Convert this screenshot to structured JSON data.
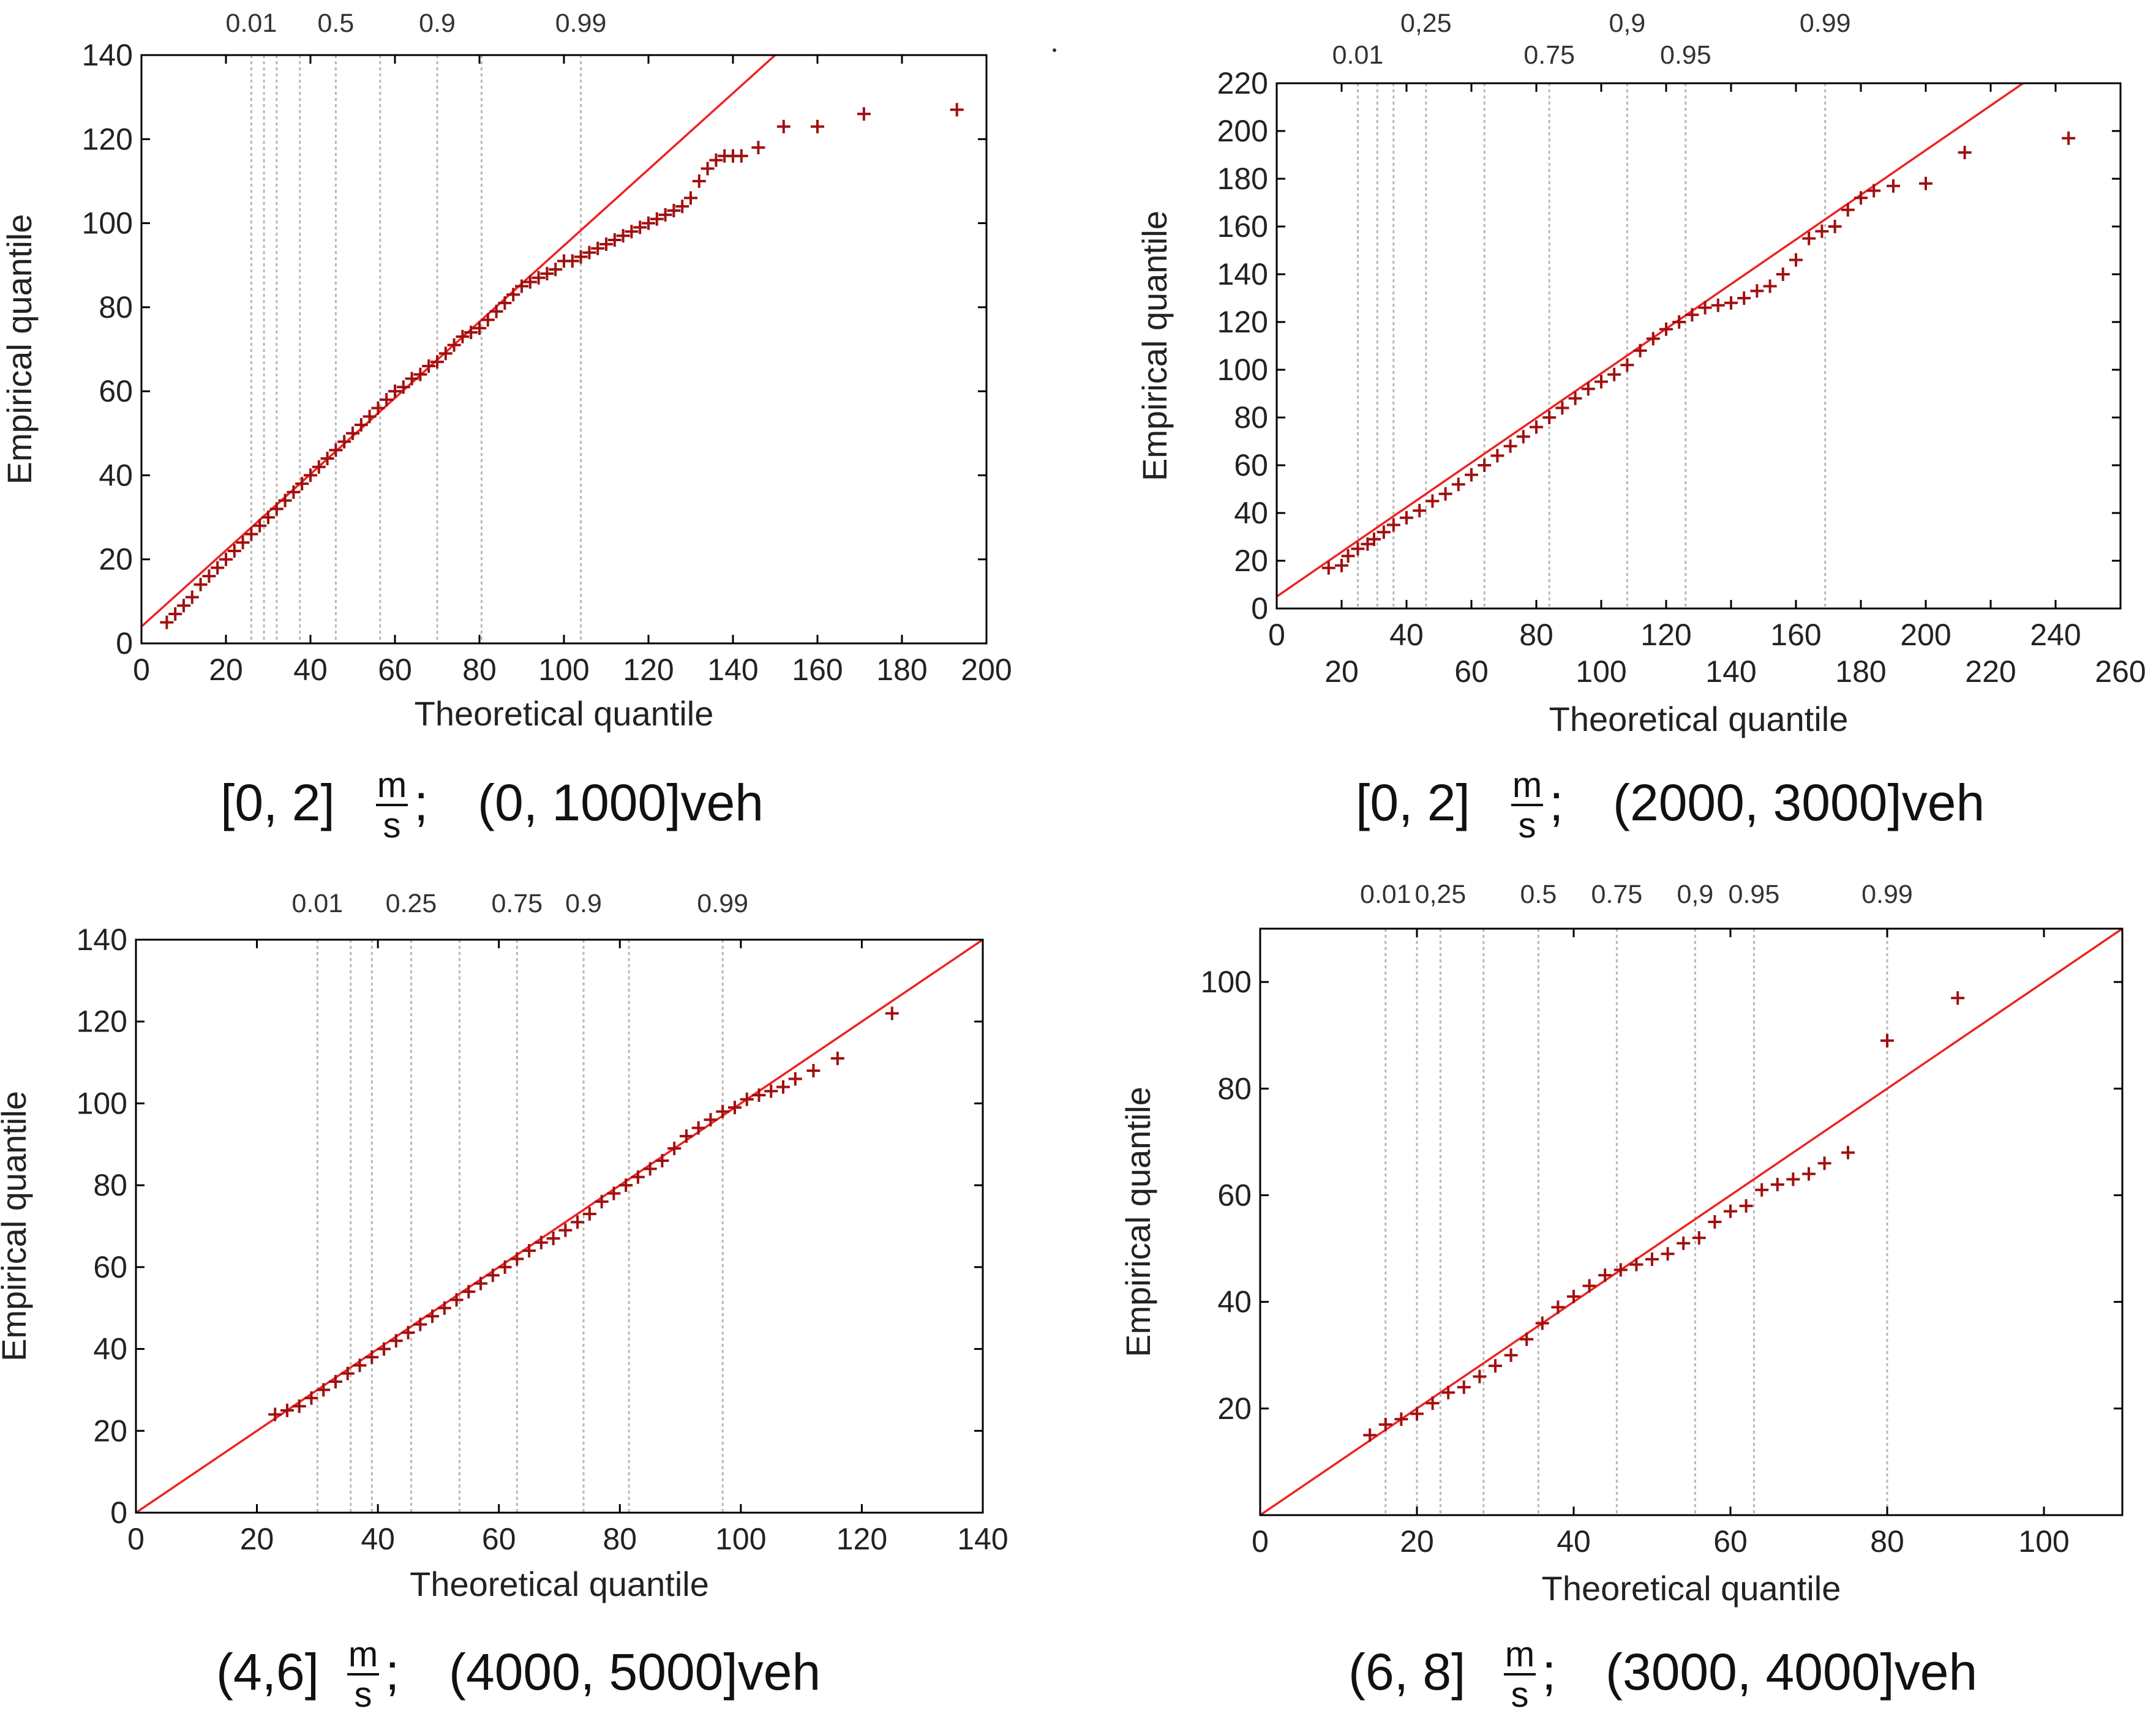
{
  "figure": {
    "axis_labels": {
      "x": "Theoretical quantile",
      "y": "Empirical quantile"
    },
    "colors": {
      "points": "#a01010",
      "reference_line": "#ee2222",
      "quantile_lines": "#b8b8b8",
      "frame": "#000000"
    }
  },
  "chart_data": [
    {
      "type": "scatter",
      "title": "[0, 2] m/s; (0, 1000]veh",
      "caption": {
        "interval": "[0, 2]",
        "unit_num": "m",
        "unit_den": "s",
        "separator": ";",
        "veh_range": "(0, 1000]veh"
      },
      "xlabel": "Theoretical quantile",
      "ylabel": "Empirical quantile",
      "xlim": [
        0,
        200
      ],
      "ylim": [
        0,
        140
      ],
      "x_ticks": [
        {
          "v": 0,
          "label": "0"
        },
        {
          "v": 20,
          "label": "20"
        },
        {
          "v": 40,
          "label": "40"
        },
        {
          "v": 60,
          "label": "60"
        },
        {
          "v": 80,
          "label": "80"
        },
        {
          "v": 100,
          "label": "100"
        },
        {
          "v": 120,
          "label": "120"
        },
        {
          "v": 140,
          "label": "140"
        },
        {
          "v": 160,
          "label": "160"
        },
        {
          "v": 180,
          "label": "180"
        },
        {
          "v": 200,
          "label": "200"
        }
      ],
      "y_ticks": [
        {
          "v": 0,
          "label": "0"
        },
        {
          "v": 20,
          "label": "20"
        },
        {
          "v": 40,
          "label": "40"
        },
        {
          "v": 60,
          "label": "60"
        },
        {
          "v": 80,
          "label": "80"
        },
        {
          "v": 100,
          "label": "100"
        },
        {
          "v": 120,
          "label": "120"
        },
        {
          "v": 140,
          "label": "140"
        }
      ],
      "quantile_lines": [
        {
          "x": 26,
          "label": "0.01"
        },
        {
          "x": 29,
          "label": ""
        },
        {
          "x": 32,
          "label": ""
        },
        {
          "x": 37.5,
          "label": ""
        },
        {
          "x": 46,
          "label": "0.5"
        },
        {
          "x": 56.5,
          "label": ""
        },
        {
          "x": 70,
          "label": "0.9"
        },
        {
          "x": 80.5,
          "label": ""
        },
        {
          "x": 104,
          "label": "0.99"
        }
      ],
      "reference_line": [
        [
          0,
          4
        ],
        [
          150,
          140
        ]
      ],
      "points": {
        "x": [
          6,
          8,
          10,
          12,
          14,
          16,
          18,
          20,
          22,
          24,
          26,
          28,
          30,
          32,
          34,
          36,
          38,
          40,
          42,
          44,
          46,
          48,
          50,
          52,
          54,
          56,
          58,
          60,
          62,
          64,
          66,
          68,
          70,
          72,
          74,
          76,
          78,
          80,
          82,
          84,
          86,
          88,
          90,
          92,
          94,
          96,
          98,
          100,
          102,
          104,
          106,
          108,
          110,
          112,
          114,
          116,
          118,
          120,
          122,
          124,
          126,
          128,
          130,
          132,
          134,
          136,
          138,
          140,
          142,
          146,
          152,
          160,
          171,
          193
        ],
        "y": [
          5,
          7,
          9,
          11,
          14,
          16,
          18,
          20,
          22,
          24,
          26,
          28,
          30,
          32,
          34,
          36,
          38,
          40,
          42,
          44,
          46,
          48,
          50,
          52,
          54,
          56,
          58,
          60,
          61,
          63,
          64,
          66,
          67,
          69,
          71,
          73,
          74,
          75,
          77,
          79,
          81,
          83,
          85,
          86,
          87,
          88,
          89,
          91,
          91,
          92,
          93,
          94,
          95,
          96,
          97,
          98,
          99,
          100,
          101,
          102,
          103,
          104,
          106,
          110,
          113,
          115,
          116,
          116,
          116,
          118,
          123,
          123,
          126,
          127
        ]
      }
    },
    {
      "type": "scatter",
      "title": "[0, 2] m/s; (2000, 3000]veh",
      "caption": {
        "interval": "[0, 2]",
        "unit_num": "m",
        "unit_den": "s",
        "separator": ";",
        "veh_range": "(2000, 3000]veh"
      },
      "xlabel": "Theoretical quantile",
      "ylabel": "Empirical quantile",
      "xlim": [
        0,
        260
      ],
      "ylim": [
        0,
        220
      ],
      "x_ticks": [
        {
          "v": 0,
          "label": "0"
        },
        {
          "v": 20,
          "label": "20"
        },
        {
          "v": 40,
          "label": "40"
        },
        {
          "v": 60,
          "label": "60"
        },
        {
          "v": 80,
          "label": "80"
        },
        {
          "v": 100,
          "label": "100"
        },
        {
          "v": 120,
          "label": "120"
        },
        {
          "v": 140,
          "label": "140"
        },
        {
          "v": 160,
          "label": "160"
        },
        {
          "v": 180,
          "label": "180"
        },
        {
          "v": 200,
          "label": "200"
        },
        {
          "v": 220,
          "label": "220"
        },
        {
          "v": 240,
          "label": "240"
        },
        {
          "v": 260,
          "label": "260"
        }
      ],
      "x_tick_staggered": true,
      "y_ticks": [
        {
          "v": 0,
          "label": "0"
        },
        {
          "v": 20,
          "label": "20"
        },
        {
          "v": 40,
          "label": "40"
        },
        {
          "v": 60,
          "label": "60"
        },
        {
          "v": 80,
          "label": "80"
        },
        {
          "v": 100,
          "label": "100"
        },
        {
          "v": 120,
          "label": "120"
        },
        {
          "v": 140,
          "label": "140"
        },
        {
          "v": 160,
          "label": "160"
        },
        {
          "v": 180,
          "label": "180"
        },
        {
          "v": 200,
          "label": "200"
        },
        {
          "v": 220,
          "label": "220"
        }
      ],
      "quantile_lines": [
        {
          "x": 25,
          "label": "0.01"
        },
        {
          "x": 31,
          "label": ""
        },
        {
          "x": 36,
          "label": ""
        },
        {
          "x": 46,
          "label": "0,25"
        },
        {
          "x": 64,
          "label": ""
        },
        {
          "x": 84,
          "label": "0.75"
        },
        {
          "x": 108,
          "label": "0,9"
        },
        {
          "x": 126,
          "label": "0.95"
        },
        {
          "x": 169,
          "label": "0.99"
        }
      ],
      "reference_line": [
        [
          0,
          5
        ],
        [
          230,
          220
        ]
      ],
      "points": {
        "x": [
          16,
          20,
          22,
          25,
          28,
          30,
          33,
          36,
          40,
          44,
          48,
          52,
          56,
          60,
          64,
          68,
          72,
          76,
          80,
          84,
          88,
          92,
          96,
          100,
          104,
          108,
          112,
          116,
          120,
          124,
          128,
          132,
          136,
          140,
          144,
          148,
          152,
          156,
          160,
          164,
          168,
          172,
          176,
          180,
          184,
          190,
          200,
          212,
          244
        ],
        "y": [
          17,
          18,
          22,
          25,
          27,
          29,
          32,
          35,
          38,
          41,
          45,
          48,
          52,
          56,
          60,
          64,
          68,
          72,
          76,
          80,
          84,
          88,
          92,
          95,
          98,
          102,
          108,
          113,
          117,
          120,
          123,
          126,
          127,
          128,
          130,
          133,
          135,
          140,
          146,
          155,
          158,
          160,
          167,
          172,
          175,
          177,
          178,
          191,
          197
        ]
      }
    },
    {
      "type": "scatter",
      "title": "(4,6] m/s; (4000, 5000]veh",
      "caption": {
        "interval": "(4,6]",
        "unit_num": "m",
        "unit_den": "s",
        "separator": ";",
        "veh_range": "(4000, 5000]veh"
      },
      "xlabel": "Theoretical quantile",
      "ylabel": "Empirical quantile",
      "xlim": [
        0,
        140
      ],
      "ylim": [
        0,
        140
      ],
      "x_ticks": [
        {
          "v": 0,
          "label": "0"
        },
        {
          "v": 20,
          "label": "20"
        },
        {
          "v": 40,
          "label": "40"
        },
        {
          "v": 60,
          "label": "60"
        },
        {
          "v": 80,
          "label": "80"
        },
        {
          "v": 100,
          "label": "100"
        },
        {
          "v": 120,
          "label": "120"
        },
        {
          "v": 140,
          "label": "140"
        }
      ],
      "y_ticks": [
        {
          "v": 0,
          "label": "0"
        },
        {
          "v": 20,
          "label": "20"
        },
        {
          "v": 40,
          "label": "40"
        },
        {
          "v": 60,
          "label": "60"
        },
        {
          "v": 80,
          "label": "80"
        },
        {
          "v": 100,
          "label": "100"
        },
        {
          "v": 120,
          "label": "120"
        },
        {
          "v": 140,
          "label": "140"
        }
      ],
      "quantile_lines": [
        {
          "x": 30,
          "label": "0.01"
        },
        {
          "x": 35.5,
          "label": ""
        },
        {
          "x": 39,
          "label": ""
        },
        {
          "x": 45.5,
          "label": "0.25"
        },
        {
          "x": 53.5,
          "label": ""
        },
        {
          "x": 63,
          "label": "0.75"
        },
        {
          "x": 74,
          "label": "0.9"
        },
        {
          "x": 81.5,
          "label": ""
        },
        {
          "x": 97,
          "label": "0.99"
        }
      ],
      "reference_line": [
        [
          0,
          0
        ],
        [
          140,
          140
        ]
      ],
      "points": {
        "x": [
          23,
          25,
          27,
          29,
          31,
          33,
          35,
          37,
          39,
          41,
          43,
          45,
          47,
          49,
          51,
          53,
          55,
          57,
          59,
          61,
          63,
          65,
          67,
          69,
          71,
          73,
          75,
          77,
          79,
          81,
          83,
          85,
          87,
          89,
          91,
          93,
          95,
          97,
          99,
          101,
          103,
          105,
          107,
          109,
          112,
          116,
          125
        ],
        "y": [
          24,
          25,
          26,
          28,
          30,
          32,
          34,
          36,
          38,
          40,
          42,
          44,
          46,
          48,
          50,
          52,
          54,
          56,
          58,
          60,
          62,
          64,
          66,
          67,
          69,
          71,
          73,
          76,
          78,
          80,
          82,
          84,
          86,
          89,
          92,
          94,
          96,
          98,
          99,
          101,
          102,
          103,
          104,
          106,
          108,
          111,
          122
        ]
      }
    },
    {
      "type": "scatter",
      "title": "(6, 8] m/s; (3000, 4000]veh",
      "caption": {
        "interval": "(6, 8]",
        "unit_num": "m",
        "unit_den": "s",
        "separator": ";",
        "veh_range": "(3000, 4000]veh"
      },
      "xlabel": "Theoretical quantile",
      "ylabel": "Empirical quantile",
      "xlim": [
        0,
        110
      ],
      "ylim": [
        0,
        110
      ],
      "x_ticks": [
        {
          "v": 0,
          "label": "0"
        },
        {
          "v": 20,
          "label": "20"
        },
        {
          "v": 40,
          "label": "40"
        },
        {
          "v": 60,
          "label": "60"
        },
        {
          "v": 80,
          "label": "80"
        },
        {
          "v": 100,
          "label": "100"
        }
      ],
      "y_ticks": [
        {
          "v": 20,
          "label": "20"
        },
        {
          "v": 40,
          "label": "40"
        },
        {
          "v": 60,
          "label": "60"
        },
        {
          "v": 80,
          "label": "80"
        },
        {
          "v": 100,
          "label": "100"
        }
      ],
      "quantile_lines": [
        {
          "x": 16,
          "label": "0.01"
        },
        {
          "x": 20,
          "label": ""
        },
        {
          "x": 23,
          "label": "0,25"
        },
        {
          "x": 28.5,
          "label": ""
        },
        {
          "x": 35.5,
          "label": "0.5"
        },
        {
          "x": 45.5,
          "label": "0.75"
        },
        {
          "x": 55.5,
          "label": "0,9"
        },
        {
          "x": 63,
          "label": "0.95"
        },
        {
          "x": 80,
          "label": "0.99"
        }
      ],
      "reference_line": [
        [
          0,
          0
        ],
        [
          110,
          110
        ]
      ],
      "points": {
        "x": [
          14,
          16,
          18,
          20,
          22,
          24,
          26,
          28,
          30,
          32,
          34,
          36,
          38,
          40,
          42,
          44,
          46,
          48,
          50,
          52,
          54,
          56,
          58,
          60,
          62,
          64,
          66,
          68,
          70,
          72,
          75,
          80,
          89
        ],
        "y": [
          15,
          17,
          18,
          19,
          21,
          23,
          24,
          26,
          28,
          30,
          33,
          36,
          39,
          41,
          43,
          45,
          46,
          47,
          48,
          49,
          51,
          52,
          55,
          57,
          58,
          61,
          62,
          63,
          64,
          66,
          68,
          89,
          97
        ]
      }
    }
  ]
}
